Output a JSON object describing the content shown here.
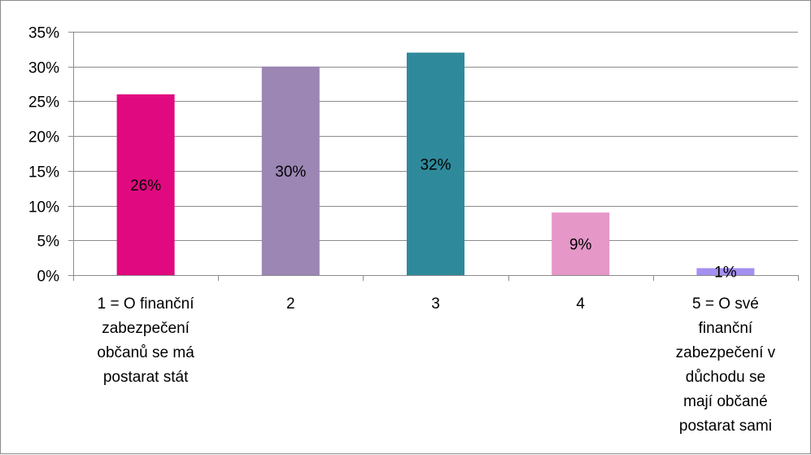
{
  "chart_data": {
    "type": "bar",
    "title": "",
    "xlabel": "",
    "ylabel": "",
    "categories": [
      "1 = O finanční zabezpečení občanů se má postarat stát",
      "2",
      "3",
      "4",
      "5 = O své finanční zabezpečení v důchodu se mají občané postarat sami"
    ],
    "category_lines": [
      [
        "1 = O finanční",
        "zabezpečení",
        "občanů se má",
        "postarat stát"
      ],
      [
        "2"
      ],
      [
        "3"
      ],
      [
        "4"
      ],
      [
        "5 = O své",
        "finanční",
        "zabezpečení v",
        "důchodu se",
        "mají občané",
        "postarat sami"
      ]
    ],
    "values": [
      26,
      30,
      32,
      9,
      1
    ],
    "data_labels": [
      "26%",
      "30%",
      "32%",
      "9%",
      "1%"
    ],
    "bar_colors": [
      "#e0097f",
      "#9b86b4",
      "#2e8a9b",
      "#e597c8",
      "#a58ff0"
    ],
    "ylim": [
      0,
      35
    ],
    "yticks": [
      "0%",
      "5%",
      "10%",
      "15%",
      "20%",
      "25%",
      "30%",
      "35%"
    ],
    "grid": true,
    "legend": "none"
  }
}
